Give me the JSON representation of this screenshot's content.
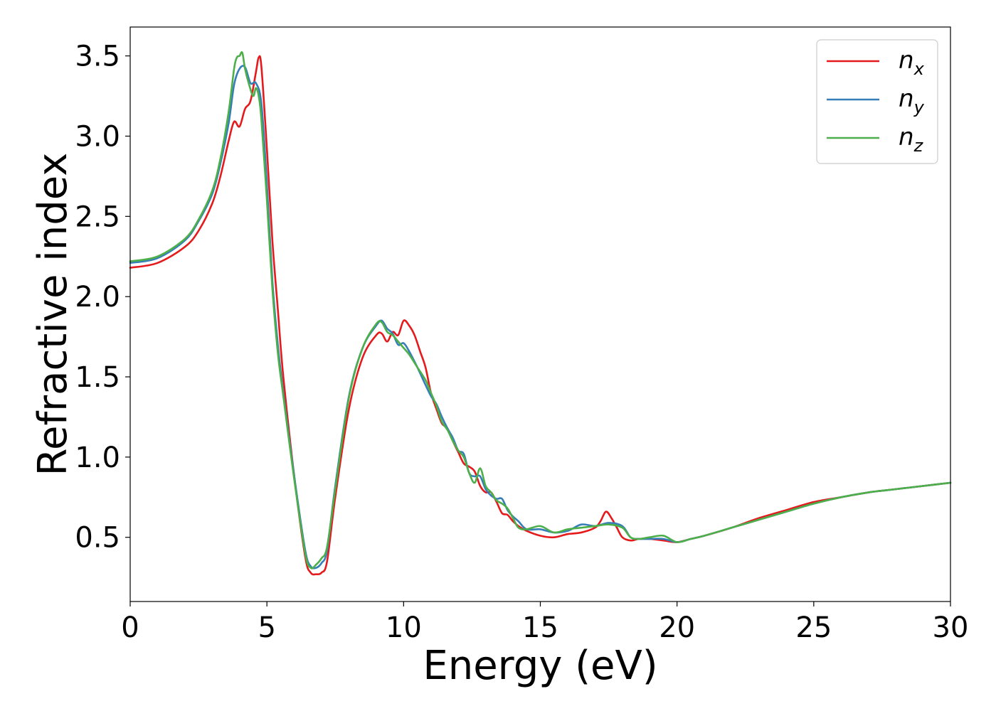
{
  "chart_data": {
    "type": "line",
    "xlabel": "Energy (eV)",
    "ylabel": "Refractive index",
    "xlim": [
      0,
      30
    ],
    "ylim": [
      0.1,
      3.68
    ],
    "xticks": [
      0,
      5,
      10,
      15,
      20,
      25,
      30
    ],
    "xtick_labels": [
      "0",
      "5",
      "10",
      "15",
      "20",
      "25",
      "30"
    ],
    "yticks": [
      0.5,
      1.0,
      1.5,
      2.0,
      2.5,
      3.0,
      3.5
    ],
    "ytick_labels": [
      "0.5",
      "1.0",
      "1.5",
      "2.0",
      "2.5",
      "3.0",
      "3.5"
    ],
    "grid": false,
    "legend_position": "top-right",
    "series": [
      {
        "name": "n",
        "subscript": "x",
        "color": "#e41a1c",
        "x": [
          0,
          1,
          2,
          2.5,
          3,
          3.3,
          3.6,
          3.8,
          4.0,
          4.2,
          4.4,
          4.6,
          4.7,
          4.8,
          5.0,
          5.2,
          5.4,
          5.6,
          6.0,
          6.4,
          6.6,
          6.8,
          7.0,
          7.2,
          7.5,
          8.0,
          8.5,
          9.0,
          9.2,
          9.4,
          9.6,
          9.8,
          10.0,
          10.2,
          10.4,
          10.6,
          10.8,
          11.0,
          11.2,
          11.4,
          11.6,
          11.8,
          12.0,
          12.2,
          12.4,
          12.6,
          12.8,
          13.0,
          13.2,
          13.4,
          13.6,
          13.8,
          14.0,
          14.2,
          14.5,
          15.0,
          15.5,
          16.0,
          16.5,
          17.0,
          17.2,
          17.4,
          17.6,
          17.8,
          18.0,
          18.3,
          18.6,
          19.0,
          19.5,
          20.0,
          20.5,
          21.0,
          22.0,
          23.0,
          24.0,
          25.0,
          26.0,
          27.0,
          28.0,
          29.0,
          30.0
        ],
        "y": [
          2.18,
          2.21,
          2.31,
          2.41,
          2.58,
          2.75,
          2.97,
          3.09,
          3.06,
          3.17,
          3.22,
          3.4,
          3.49,
          3.43,
          2.92,
          2.35,
          1.92,
          1.5,
          0.88,
          0.38,
          0.28,
          0.27,
          0.28,
          0.35,
          0.75,
          1.3,
          1.62,
          1.76,
          1.77,
          1.72,
          1.78,
          1.76,
          1.85,
          1.82,
          1.76,
          1.66,
          1.56,
          1.4,
          1.3,
          1.21,
          1.18,
          1.1,
          1.03,
          0.96,
          0.94,
          0.91,
          0.82,
          0.78,
          0.78,
          0.72,
          0.65,
          0.64,
          0.6,
          0.57,
          0.54,
          0.51,
          0.5,
          0.52,
          0.53,
          0.56,
          0.6,
          0.66,
          0.62,
          0.56,
          0.5,
          0.48,
          0.49,
          0.49,
          0.48,
          0.47,
          0.49,
          0.51,
          0.56,
          0.62,
          0.67,
          0.72,
          0.75,
          0.78,
          0.8,
          0.82,
          0.84
        ]
      },
      {
        "name": "n",
        "subscript": "y",
        "color": "#377eb8",
        "x": [
          0,
          1,
          2,
          2.5,
          3,
          3.3,
          3.6,
          3.8,
          4.0,
          4.2,
          4.4,
          4.6,
          4.8,
          5.0,
          5.2,
          5.4,
          5.6,
          6.0,
          6.4,
          6.6,
          6.8,
          7.0,
          7.2,
          7.5,
          8.0,
          8.5,
          9.0,
          9.2,
          9.4,
          9.6,
          9.8,
          10.0,
          10.2,
          10.5,
          10.8,
          11.0,
          11.2,
          11.4,
          11.6,
          11.8,
          12.0,
          12.2,
          12.4,
          12.6,
          12.8,
          13.0,
          13.2,
          13.4,
          13.6,
          13.8,
          14.0,
          14.2,
          14.5,
          15.0,
          15.5,
          16.0,
          16.5,
          17.0,
          17.5,
          18.0,
          18.3,
          18.6,
          19.0,
          19.5,
          20.0,
          20.5,
          21.0,
          22.0,
          23.0,
          24.0,
          25.0,
          26.0,
          27.0,
          28.0,
          29.0,
          30.0
        ],
        "y": [
          2.21,
          2.24,
          2.35,
          2.47,
          2.64,
          2.83,
          3.08,
          3.32,
          3.42,
          3.43,
          3.33,
          3.33,
          3.2,
          2.7,
          2.1,
          1.7,
          1.4,
          0.88,
          0.42,
          0.32,
          0.31,
          0.34,
          0.42,
          0.82,
          1.38,
          1.68,
          1.82,
          1.85,
          1.8,
          1.77,
          1.7,
          1.71,
          1.66,
          1.56,
          1.45,
          1.38,
          1.33,
          1.25,
          1.18,
          1.12,
          1.04,
          1.02,
          0.9,
          0.88,
          0.88,
          0.8,
          0.76,
          0.74,
          0.74,
          0.67,
          0.63,
          0.6,
          0.55,
          0.55,
          0.53,
          0.54,
          0.58,
          0.57,
          0.59,
          0.57,
          0.5,
          0.49,
          0.49,
          0.49,
          0.47,
          0.49,
          0.51,
          0.56,
          0.61,
          0.66,
          0.71,
          0.75,
          0.78,
          0.8,
          0.82,
          0.84
        ]
      },
      {
        "name": "n",
        "subscript": "z",
        "color": "#4daf4a",
        "x": [
          0,
          1,
          2,
          2.5,
          3,
          3.3,
          3.6,
          3.8,
          3.9,
          4.0,
          4.1,
          4.2,
          4.35,
          4.5,
          4.6,
          4.7,
          4.8,
          5.0,
          5.2,
          5.4,
          5.6,
          6.0,
          6.4,
          6.6,
          6.8,
          7.0,
          7.2,
          7.5,
          8.0,
          8.5,
          9.0,
          9.2,
          9.4,
          9.6,
          9.8,
          10.0,
          10.2,
          10.5,
          10.8,
          11.0,
          11.2,
          11.4,
          11.6,
          11.8,
          12.0,
          12.2,
          12.4,
          12.6,
          12.8,
          13.0,
          13.2,
          13.4,
          13.6,
          13.8,
          14.0,
          14.2,
          14.5,
          15.0,
          15.5,
          16.0,
          16.5,
          17.0,
          17.5,
          18.0,
          18.3,
          18.6,
          19.0,
          19.5,
          20.0,
          20.5,
          21.0,
          22.0,
          23.0,
          24.0,
          25.0,
          26.0,
          27.0,
          28.0,
          29.0,
          30.0
        ],
        "y": [
          2.22,
          2.25,
          2.36,
          2.48,
          2.66,
          2.86,
          3.15,
          3.42,
          3.49,
          3.5,
          3.52,
          3.42,
          3.32,
          3.25,
          3.3,
          3.25,
          3.1,
          2.6,
          2.05,
          1.65,
          1.38,
          0.86,
          0.4,
          0.31,
          0.33,
          0.37,
          0.44,
          0.8,
          1.37,
          1.68,
          1.83,
          1.84,
          1.78,
          1.76,
          1.72,
          1.68,
          1.64,
          1.56,
          1.48,
          1.4,
          1.32,
          1.22,
          1.17,
          1.1,
          1.04,
          1.0,
          0.9,
          0.84,
          0.93,
          0.82,
          0.78,
          0.73,
          0.71,
          0.68,
          0.62,
          0.56,
          0.55,
          0.57,
          0.53,
          0.55,
          0.56,
          0.57,
          0.58,
          0.56,
          0.5,
          0.49,
          0.5,
          0.51,
          0.47,
          0.49,
          0.51,
          0.56,
          0.61,
          0.66,
          0.71,
          0.75,
          0.78,
          0.8,
          0.82,
          0.84
        ]
      }
    ]
  }
}
